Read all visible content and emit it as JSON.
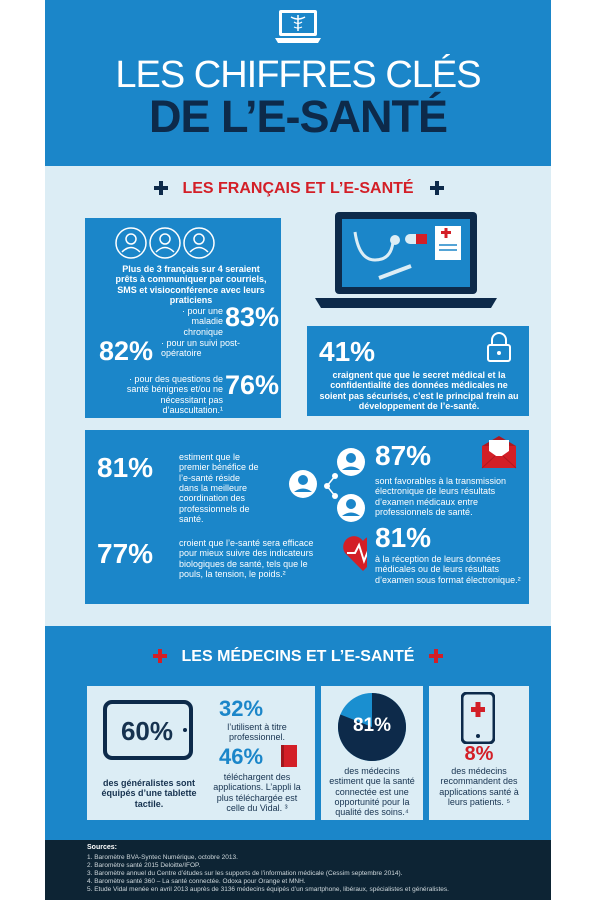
{
  "colors": {
    "primary": "#1b86c9",
    "navy": "#0d2a4a",
    "light": "#dcedf5",
    "red": "#d31f27",
    "footer": "#0d2434"
  },
  "header": {
    "title_line1": "LES CHIFFRES CLÉS",
    "title_line2": "DE L’E-SANTÉ",
    "icon": "laptop-caduceus-icon"
  },
  "section1": {
    "title": "LES FRANÇAIS ET L’E-SANTÉ",
    "box1": {
      "intro": "Plus de 3 français sur 4 seraient prêts à communiquer par courriels, SMS et visioconférence avec leurs praticiens",
      "stat1_value": "83%",
      "stat1_label": "· pour une maladie chronique",
      "stat2_value": "82%",
      "stat2_label": "· pour un suivi post-opératoire",
      "stat3_value": "76%",
      "stat3_label": "· pour des questions de santé bénignes et/ou ne nécessitant pas d’auscultation.¹"
    },
    "box2": {
      "value": "41%",
      "text": "craignent que que le secret médical et la confidentialité des données médicales ne soient pas sécurisés, c’est le principal frein au développement de l’e-santé."
    },
    "box3": {
      "stat1_value": "81%",
      "stat1_text": "estiment que le premier bénéfice de l’e-santé réside dans la meilleure coordination des professionnels de santé.",
      "stat2_value": "77%",
      "stat2_text": "croient que l’e-santé sera efficace pour mieux suivre des indicateurs biologiques de santé, tels que le pouls, la tension, le poids.²"
    },
    "box4": {
      "stat1_value": "87%",
      "stat1_text": "sont favorables à la transmission électronique de leurs résultats d’examen médicaux entre professionnels de santé.",
      "stat2_value": "81%",
      "stat2_text": "à la réception de leurs données médicales ou de leurs résultats d’examen sous format électronique.²"
    }
  },
  "section2": {
    "title": "LES MÉDECINS ET L’E-SANTÉ",
    "box1": {
      "tablet_value": "60%",
      "tablet_text": "des généralistes sont équipés d’une tablette tactile.",
      "stat1_value": "32%",
      "stat1_text": "l’utilisent à titre professionnel.",
      "stat2_value": "46%",
      "stat2_text": "téléchargent des applications. L’appli la plus téléchargée est celle du Vidal. ³"
    },
    "box2": {
      "value": "81%",
      "fraction": 0.81,
      "text": "des médecins estiment que la santé connectée est une opportunité pour la qualité des soins.⁴"
    },
    "box3": {
      "value": "8%",
      "text": "des médecins recommandent des applications santé à leurs patients. ⁵"
    }
  },
  "footer": {
    "title": "Sources:",
    "items": [
      "1. Baromètre BVA-Syntec Numérique, octobre 2013.",
      "2. Baromètre santé 2015 Deloitte/IFOP.",
      "3. Baromètre annuel du Centre d’études sur les supports de l’information médicale (Cessim septembre 2014).",
      "4. Baromètre santé 360 – La santé connectée. Odoxa pour Orange et MNH.",
      "5. Etude Vidal menée en avril 2013 auprès de 3136 médecins équipés d’un smartphone, libéraux, spécialistes et généralistes."
    ]
  }
}
